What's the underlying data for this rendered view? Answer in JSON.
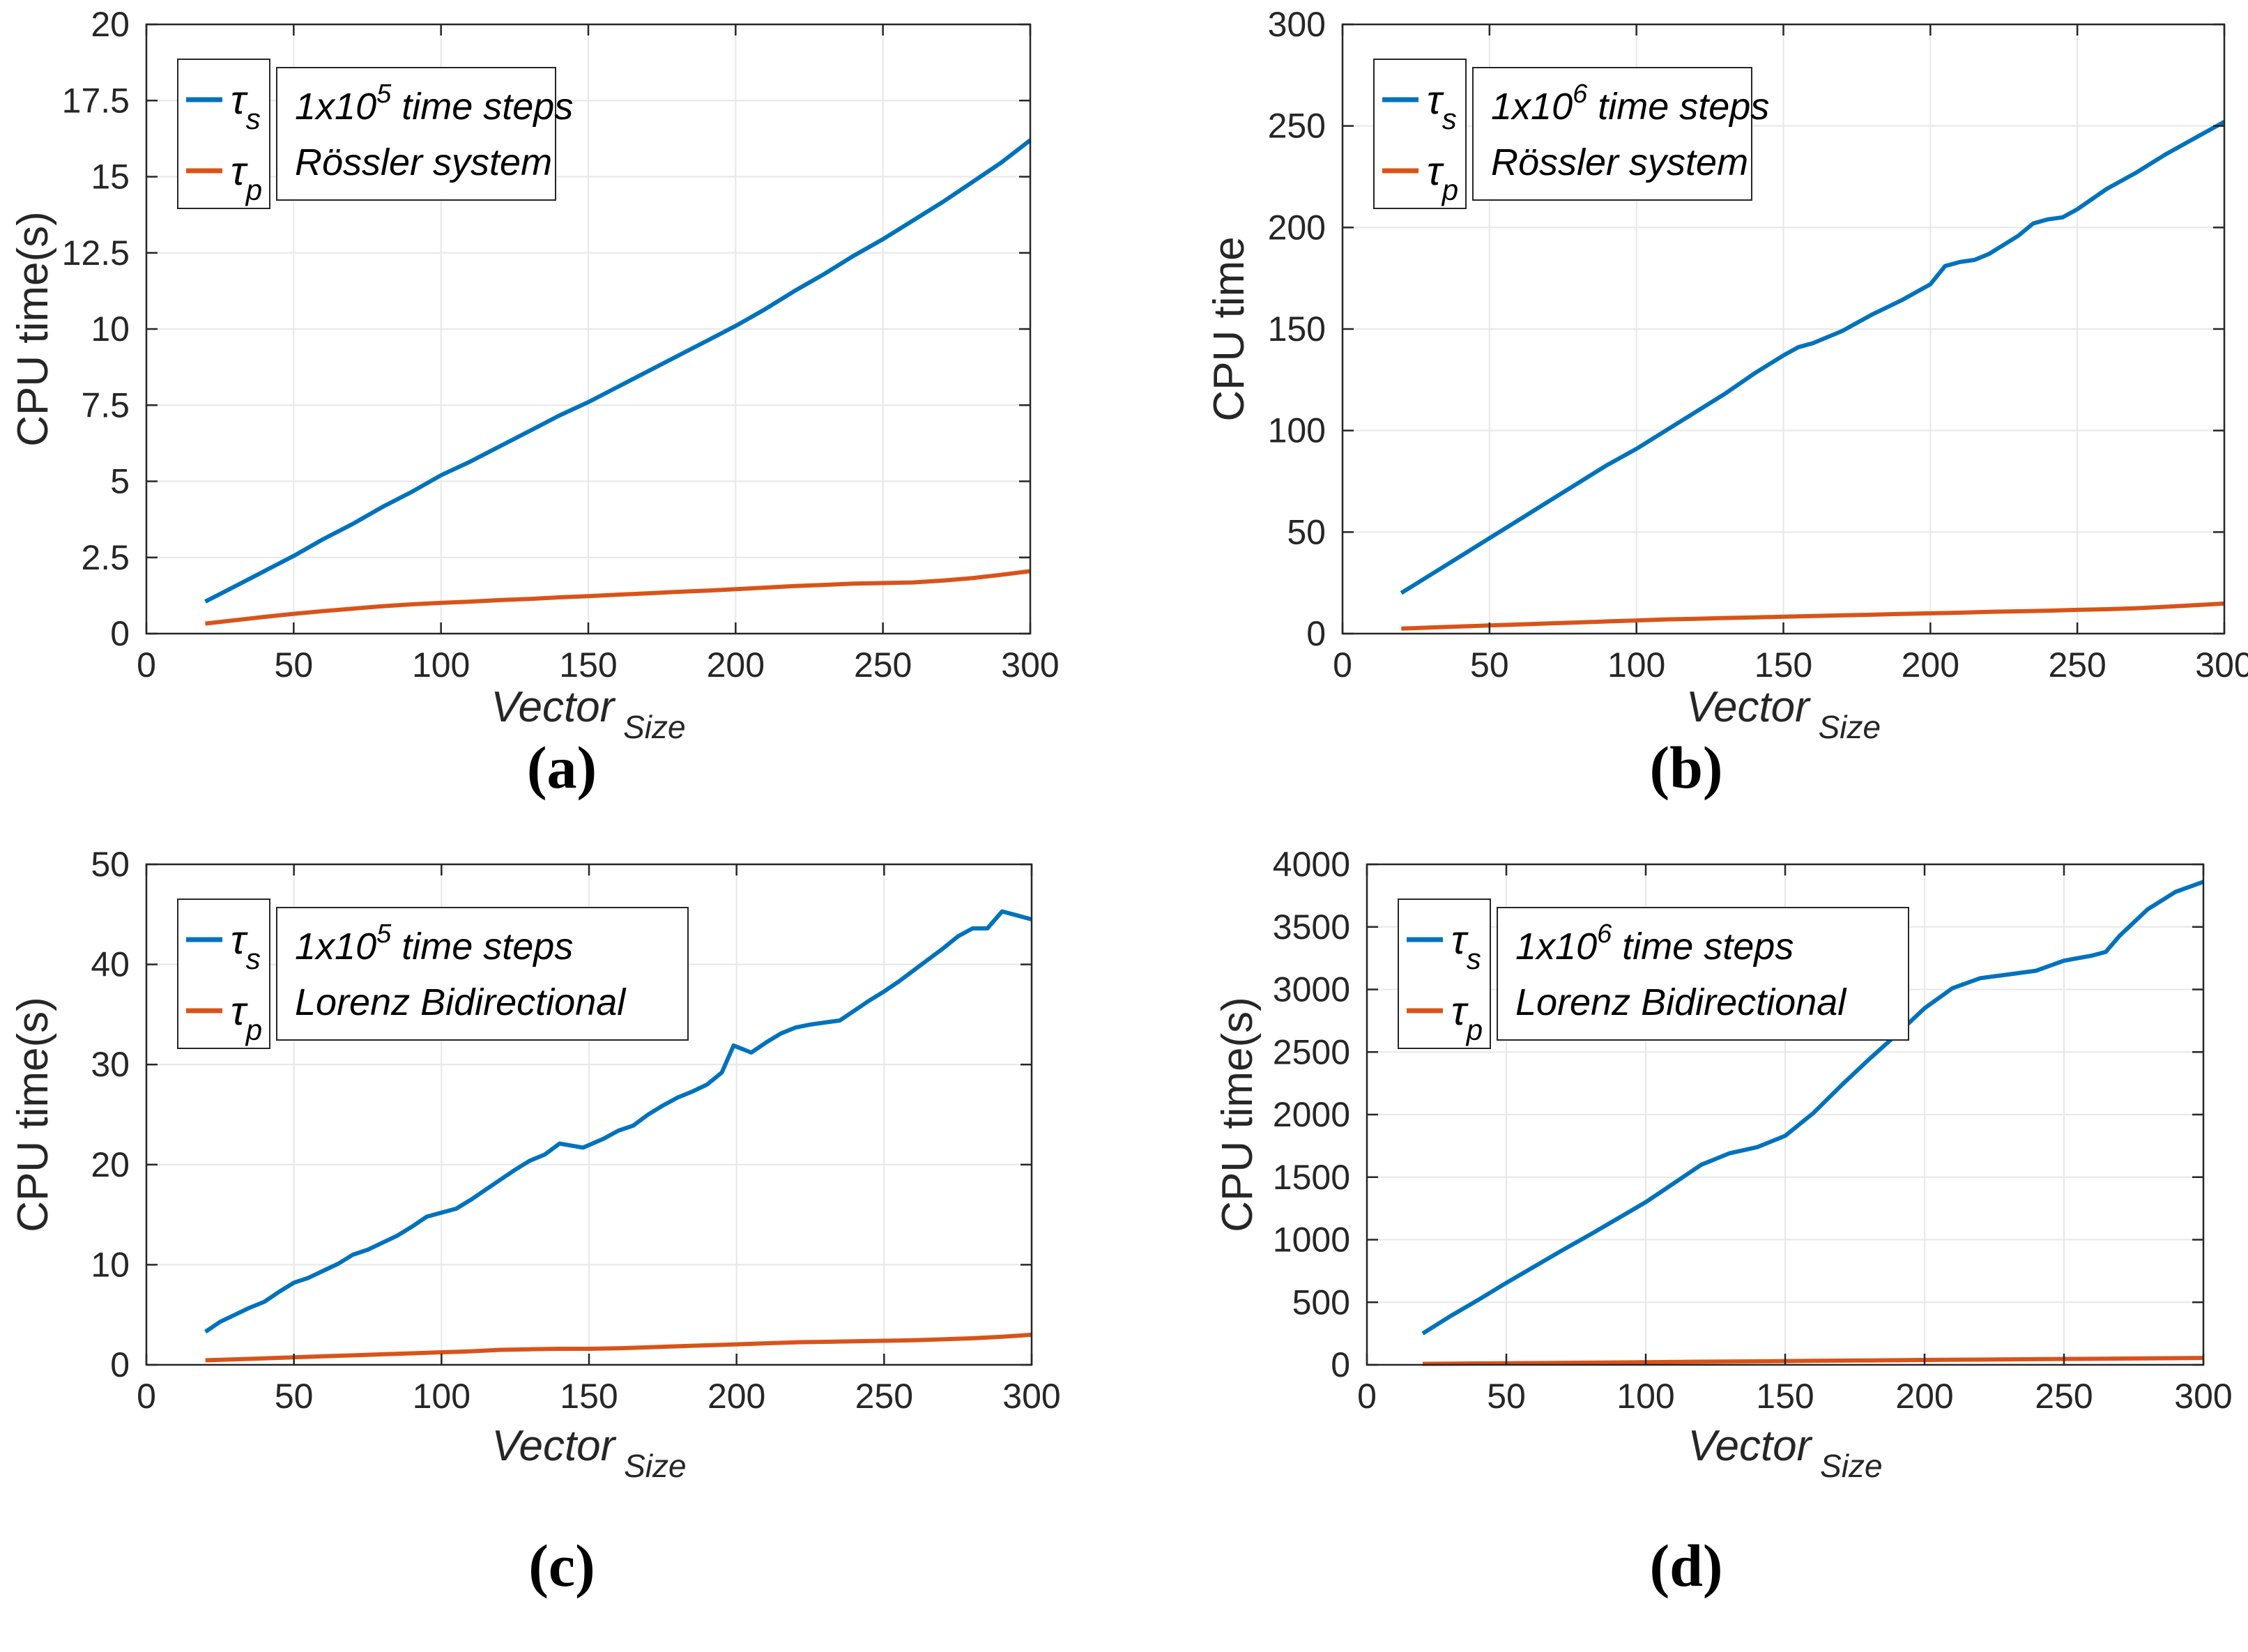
{
  "figure": {
    "description_items": [
      "CPU time comparison panels"
    ],
    "background": "#FFFFFF"
  },
  "colors": {
    "tau_s": "#0072BD",
    "tau_p": "#D95319",
    "grid": "#E7E7E7",
    "axis": "#262626",
    "caption_text": "#000000"
  },
  "chart_data": [
    {
      "type": "line",
      "caption": "(a)",
      "ylabel": "CPU time(s)",
      "xlabel_main": "Vector",
      "xlabel_sub": "Size",
      "xlim": [
        0,
        300
      ],
      "ylim": [
        0,
        20
      ],
      "xticks": [
        0,
        50,
        100,
        150,
        200,
        250,
        300
      ],
      "yticks": [
        0,
        2.5,
        5,
        7.5,
        10,
        12.5,
        15,
        17.5,
        20
      ],
      "xtick_labels": [
        "0",
        "50",
        "100",
        "150",
        "200",
        "250",
        "300"
      ],
      "ytick_labels": [
        "0",
        "2.5",
        "5",
        "7.5",
        "10",
        "12.5",
        "15",
        "17.5",
        "20"
      ],
      "grid": true,
      "legend_position": "top-left",
      "legend_entries": [
        {
          "glyph": "τ",
          "subscript": "s",
          "color_key": "tau_s"
        },
        {
          "glyph": "τ",
          "subscript": "p",
          "color_key": "tau_p"
        }
      ],
      "annotation": {
        "line1_base": "1x10",
        "line1_exponent": "5",
        "line1_suffix": "time steps",
        "line2": "Rössler system"
      },
      "series": [
        {
          "id": "tau-s",
          "color_key": "tau_s",
          "x": [
            20,
            30,
            40,
            50,
            60,
            70,
            80,
            90,
            100,
            110,
            120,
            130,
            140,
            150,
            160,
            170,
            180,
            190,
            200,
            210,
            220,
            230,
            240,
            250,
            260,
            270,
            280,
            290,
            300
          ],
          "y": [
            1.05,
            1.55,
            2.05,
            2.55,
            3.1,
            3.6,
            4.15,
            4.65,
            5.2,
            5.65,
            6.15,
            6.65,
            7.15,
            7.6,
            8.1,
            8.6,
            9.1,
            9.6,
            10.1,
            10.65,
            11.25,
            11.8,
            12.4,
            12.95,
            13.55,
            14.15,
            14.8,
            15.45,
            16.2
          ]
        },
        {
          "id": "tau-p",
          "color_key": "tau_p",
          "x": [
            20,
            30,
            40,
            50,
            60,
            70,
            80,
            90,
            100,
            110,
            120,
            130,
            140,
            150,
            160,
            170,
            180,
            190,
            200,
            210,
            220,
            230,
            240,
            250,
            260,
            270,
            280,
            290,
            300
          ],
          "y": [
            0.33,
            0.44,
            0.55,
            0.65,
            0.74,
            0.82,
            0.9,
            0.96,
            1.01,
            1.05,
            1.1,
            1.14,
            1.19,
            1.23,
            1.28,
            1.32,
            1.37,
            1.41,
            1.46,
            1.51,
            1.56,
            1.6,
            1.64,
            1.66,
            1.68,
            1.74,
            1.82,
            1.93,
            2.05
          ]
        }
      ]
    },
    {
      "type": "line",
      "caption": "(b)",
      "ylabel": "CPU time",
      "xlabel_main": "Vector",
      "xlabel_sub": "Size",
      "xlim": [
        0,
        300
      ],
      "ylim": [
        0,
        300
      ],
      "xticks": [
        0,
        50,
        100,
        150,
        200,
        250,
        300
      ],
      "yticks": [
        0,
        50,
        100,
        150,
        200,
        250,
        300
      ],
      "xtick_labels": [
        "0",
        "50",
        "100",
        "150",
        "200",
        "250",
        "300"
      ],
      "ytick_labels": [
        "0",
        "50",
        "100",
        "150",
        "200",
        "250",
        "300"
      ],
      "grid": true,
      "legend_position": "top-left",
      "legend_entries": [
        {
          "glyph": "τ",
          "subscript": "s",
          "color_key": "tau_s"
        },
        {
          "glyph": "τ",
          "subscript": "p",
          "color_key": "tau_p"
        }
      ],
      "annotation": {
        "line1_base": "1x10",
        "line1_exponent": "6",
        "line1_suffix": "time steps",
        "line2": "Rössler system"
      },
      "series": [
        {
          "id": "tau-s",
          "color_key": "tau_s",
          "x": [
            20,
            30,
            40,
            50,
            60,
            70,
            80,
            90,
            100,
            110,
            120,
            130,
            140,
            150,
            155,
            160,
            170,
            180,
            190,
            200,
            205,
            210,
            215,
            220,
            230,
            235,
            240,
            245,
            250,
            260,
            270,
            280,
            290,
            300
          ],
          "y": [
            20,
            29,
            38,
            47,
            56,
            65,
            74,
            83,
            91,
            100,
            109,
            118,
            128,
            137,
            141,
            143,
            149,
            157,
            164,
            172,
            181,
            183,
            184,
            187,
            196,
            202,
            204,
            205,
            209,
            219,
            227,
            236,
            244,
            252
          ]
        },
        {
          "id": "tau-p",
          "color_key": "tau_p",
          "x": [
            20,
            30,
            40,
            50,
            60,
            70,
            80,
            90,
            100,
            110,
            120,
            130,
            140,
            150,
            160,
            170,
            180,
            190,
            200,
            210,
            220,
            230,
            240,
            250,
            260,
            270,
            280,
            290,
            300
          ],
          "y": [
            2.5,
            3,
            3.5,
            4,
            4.5,
            5,
            5.5,
            6,
            6.5,
            7,
            7.3,
            7.7,
            8,
            8.3,
            8.7,
            9,
            9.3,
            9.7,
            10,
            10.3,
            10.7,
            11,
            11.3,
            11.7,
            12,
            12.5,
            13.2,
            14,
            14.8
          ]
        }
      ]
    },
    {
      "type": "line",
      "caption": "(c)",
      "ylabel": "CPU time(s)",
      "xlabel_main": "Vector",
      "xlabel_sub": "Size",
      "xlim": [
        0,
        300
      ],
      "ylim": [
        0,
        50
      ],
      "xticks": [
        0,
        50,
        100,
        150,
        200,
        250,
        300
      ],
      "yticks": [
        0,
        10,
        20,
        30,
        40,
        50
      ],
      "xtick_labels": [
        "0",
        "50",
        "100",
        "150",
        "200",
        "250",
        "300"
      ],
      "ytick_labels": [
        "0",
        "10",
        "20",
        "30",
        "40",
        "50"
      ],
      "grid": true,
      "legend_position": "top-left",
      "legend_entries": [
        {
          "glyph": "τ",
          "subscript": "s",
          "color_key": "tau_s"
        },
        {
          "glyph": "τ",
          "subscript": "p",
          "color_key": "tau_p"
        }
      ],
      "annotation": {
        "line1_base": "1x10",
        "line1_exponent": "5",
        "line1_suffix": "time steps",
        "line2": "Lorenz Bidirectional"
      },
      "series": [
        {
          "id": "tau-s",
          "color_key": "tau_s",
          "x": [
            20,
            25,
            30,
            35,
            40,
            45,
            50,
            55,
            60,
            65,
            70,
            75,
            80,
            85,
            90,
            95,
            100,
            105,
            110,
            115,
            120,
            125,
            130,
            135,
            140,
            148,
            155,
            160,
            165,
            170,
            175,
            180,
            185,
            190,
            195,
            199,
            205,
            210,
            215,
            220,
            225,
            230,
            235,
            240,
            245,
            250,
            255,
            260,
            265,
            270,
            275,
            280,
            285,
            290,
            295,
            300
          ],
          "y": [
            3.3,
            4.3,
            5.0,
            5.7,
            6.3,
            7.3,
            8.2,
            8.7,
            9.4,
            10.1,
            11.0,
            11.5,
            12.2,
            12.9,
            13.8,
            14.8,
            15.2,
            15.6,
            16.5,
            17.5,
            18.5,
            19.5,
            20.4,
            21.0,
            22.1,
            21.7,
            22.6,
            23.4,
            23.9,
            25.0,
            25.9,
            26.7,
            27.3,
            28.0,
            29.2,
            31.9,
            31.2,
            32.2,
            33.1,
            33.7,
            34.0,
            34.2,
            34.4,
            35.4,
            36.4,
            37.3,
            38.3,
            39.4,
            40.5,
            41.6,
            42.8,
            43.6,
            43.6,
            45.3,
            44.9,
            44.5
          ]
        },
        {
          "id": "tau-p",
          "color_key": "tau_p",
          "x": [
            20,
            30,
            40,
            50,
            60,
            70,
            80,
            90,
            100,
            110,
            120,
            130,
            140,
            150,
            160,
            170,
            180,
            190,
            200,
            210,
            220,
            230,
            240,
            250,
            260,
            270,
            280,
            290,
            300
          ],
          "y": [
            0.45,
            0.55,
            0.65,
            0.75,
            0.85,
            0.95,
            1.05,
            1.15,
            1.25,
            1.35,
            1.5,
            1.55,
            1.6,
            1.6,
            1.65,
            1.75,
            1.85,
            1.95,
            2.05,
            2.15,
            2.25,
            2.3,
            2.35,
            2.4,
            2.45,
            2.55,
            2.65,
            2.8,
            3.0
          ]
        }
      ]
    },
    {
      "type": "line",
      "caption": "(d)",
      "ylabel": "CPU time(s)",
      "xlabel_main": "Vector",
      "xlabel_sub": "Size",
      "xlim": [
        0,
        300
      ],
      "ylim": [
        0,
        4000
      ],
      "xticks": [
        0,
        50,
        100,
        150,
        200,
        250,
        300
      ],
      "yticks": [
        0,
        500,
        1000,
        1500,
        2000,
        2500,
        3000,
        3500,
        4000
      ],
      "xtick_labels": [
        "0",
        "50",
        "100",
        "150",
        "200",
        "250",
        "300"
      ],
      "ytick_labels": [
        "0",
        "500",
        "1000",
        "1500",
        "2000",
        "2500",
        "3000",
        "3500",
        "4000"
      ],
      "grid": true,
      "legend_position": "top-left",
      "legend_entries": [
        {
          "glyph": "τ",
          "subscript": "s",
          "color_key": "tau_s"
        },
        {
          "glyph": "τ",
          "subscript": "p",
          "color_key": "tau_p"
        }
      ],
      "annotation": {
        "line1_base": "1x10",
        "line1_exponent": "6",
        "line1_suffix": "time steps",
        "line2": "Lorenz Bidirectional"
      },
      "series": [
        {
          "id": "tau-s",
          "color_key": "tau_s",
          "x": [
            20,
            30,
            40,
            50,
            60,
            70,
            80,
            90,
            100,
            110,
            120,
            130,
            140,
            150,
            160,
            170,
            180,
            190,
            200,
            210,
            220,
            230,
            240,
            250,
            260,
            265,
            270,
            280,
            290,
            300
          ],
          "y": [
            250,
            390,
            520,
            655,
            785,
            915,
            1040,
            1170,
            1300,
            1450,
            1600,
            1690,
            1740,
            1830,
            2010,
            2230,
            2440,
            2640,
            2850,
            3010,
            3090,
            3120,
            3150,
            3230,
            3270,
            3300,
            3430,
            3640,
            3780,
            3860
          ]
        },
        {
          "id": "tau-p",
          "color_key": "tau_p",
          "x": [
            20,
            40,
            60,
            80,
            100,
            120,
            140,
            160,
            180,
            200,
            220,
            240,
            260,
            280,
            300
          ],
          "y": [
            8,
            11,
            14,
            17,
            21,
            25,
            28,
            32,
            35,
            39,
            42,
            45,
            48,
            51,
            55
          ]
        }
      ]
    }
  ]
}
